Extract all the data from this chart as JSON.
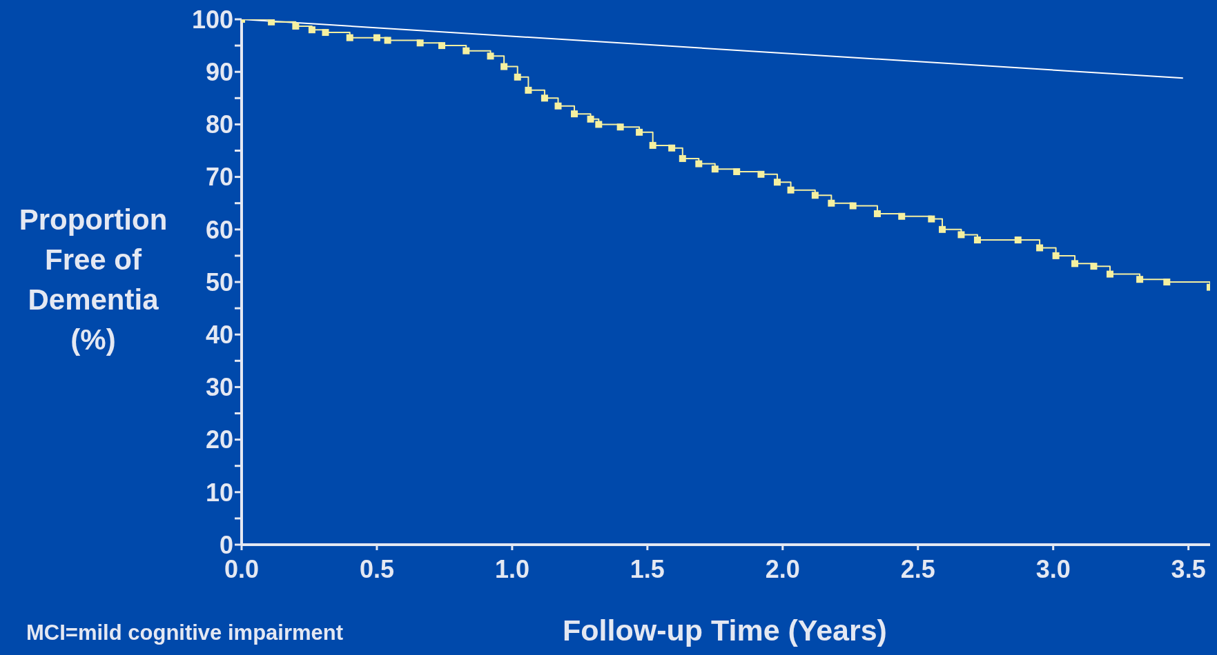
{
  "chart_data": {
    "type": "step",
    "xlabel": "Follow-up Time (Years)",
    "ylabel": "Proportion Free of Dementia (%)",
    "annotations": [
      "MCI=mild cognitive impairment"
    ],
    "xlim": [
      0,
      3.58
    ],
    "ylim": [
      0,
      100
    ],
    "xticks": [
      {
        "value": 0,
        "label": "0.0"
      },
      {
        "value": 0.5,
        "label": "0.5"
      },
      {
        "value": 1,
        "label": "1.0"
      },
      {
        "value": 1.5,
        "label": "1.5"
      },
      {
        "value": 2,
        "label": "2.0"
      },
      {
        "value": 2.5,
        "label": "2.5"
      },
      {
        "value": 3,
        "label": "3.0"
      },
      {
        "value": 3.5,
        "label": "3.5"
      }
    ],
    "yticks": [
      0,
      {
        "value": 5,
        "label": null
      },
      10,
      {
        "value": 15,
        "label": null
      },
      20,
      {
        "value": 25,
        "label": null
      },
      30,
      {
        "value": 35,
        "label": null
      },
      40,
      {
        "value": 45,
        "label": null
      },
      50,
      {
        "value": 55,
        "label": null
      },
      60,
      {
        "value": 65,
        "label": null
      },
      70,
      {
        "value": 75,
        "label": null
      },
      80,
      {
        "value": 85,
        "label": null
      },
      90,
      {
        "value": 95,
        "label": null
      },
      100
    ],
    "marker": "square",
    "series": [
      {
        "type": "line",
        "color": "#ffffff",
        "marker": "none",
        "x": [
          0,
          3.48
        ],
        "values": [
          100,
          88.8
        ]
      },
      {
        "color": "#f5f0a0",
        "x": [
          0,
          0.11,
          0.2,
          0.26,
          0.31,
          0.4,
          0.5,
          0.54,
          0.66,
          0.74,
          0.83,
          0.92,
          0.97,
          1.02,
          1.06,
          1.12,
          1.17,
          1.23,
          1.29,
          1.32,
          1.4,
          1.47,
          1.52,
          1.59,
          1.63,
          1.69,
          1.75,
          1.83,
          1.92,
          1.98,
          2.03,
          2.12,
          2.18,
          2.26,
          2.35,
          2.44,
          2.55,
          2.59,
          2.66,
          2.72,
          2.87,
          2.95,
          3.01,
          3.08,
          3.15,
          3.21,
          3.32,
          3.42,
          3.58
        ],
        "values": [
          100,
          99.5,
          98.7,
          98,
          97.5,
          96.5,
          96.5,
          96,
          95.5,
          95,
          94,
          93,
          91,
          89,
          86.5,
          85,
          83.5,
          82,
          81,
          80,
          79.5,
          78.5,
          76,
          75.5,
          73.5,
          72.5,
          71.5,
          71,
          70.5,
          69,
          67.5,
          66.5,
          65,
          64.5,
          63,
          62.5,
          62,
          60,
          59,
          58,
          58,
          56.5,
          55,
          53.5,
          53,
          51.5,
          50.5,
          50,
          49
        ]
      }
    ]
  }
}
